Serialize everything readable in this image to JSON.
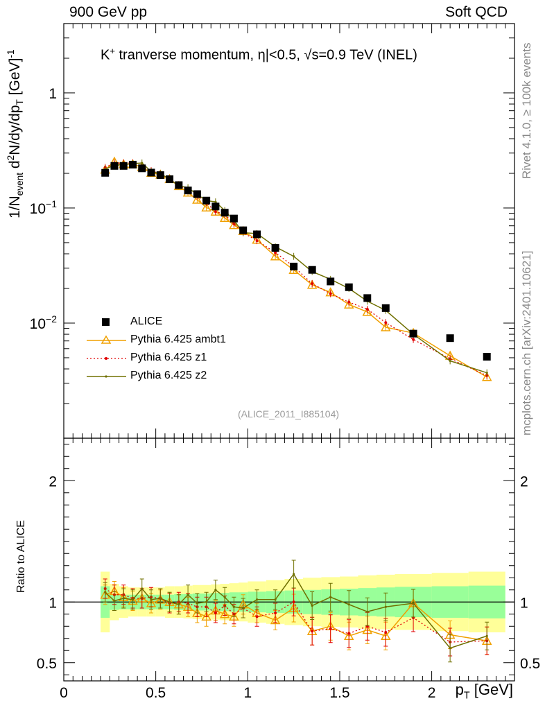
{
  "header": {
    "left": "900 GeV pp",
    "right": "Soft QCD"
  },
  "side": {
    "rivet": "Rivet 4.1.0, ≥ 100k events",
    "url": "mcplots.cern.ch [arXiv:2401.10621]"
  },
  "reference": "(ALICE_2011_I885104)",
  "colors": {
    "data": "#000000",
    "ambt1": "#f0a000",
    "z1": "#e00000",
    "z2": "#707000",
    "band_inner": "#99ff99",
    "band_outer": "#ffff99"
  },
  "chart_data": [
    {
      "type": "scatter",
      "title": "K⁺ tranverse momentum, |η|<0.5, √s=0.9 TeV (INEL)",
      "title_parts": {
        "k": "K",
        "kplus": "+",
        "text1": " tranverse momentum, ",
        "eta": "η",
        "text2": "|<0.5, ",
        "sqrt": "√",
        "text3": "s=0.9 TeV (INEL)"
      },
      "xlabel": "p_T [GeV]",
      "xlabel_parts": {
        "p": "p",
        "sub": "T",
        "unit": " [GeV]"
      },
      "ylabel": "1/N_event d²N/dy/dp_T [GeV]⁻¹",
      "ylabel_parts": {
        "a": "1/N",
        "sub1": "event",
        "b": " d",
        "sup1": "2",
        "c": "N/dy/dp",
        "sub2": "T",
        "d": " [GeV]",
        "sup2": "-1"
      },
      "xlim": [
        0,
        2.45
      ],
      "ylim_log": [
        0.001,
        4
      ],
      "yscale": "log",
      "ytick_labels": [
        "1",
        "10^-1",
        "10^-2"
      ],
      "ytick_parts": [
        {
          "base": "1",
          "exp": ""
        },
        {
          "base": "10",
          "exp": "−1"
        },
        {
          "base": "10",
          "exp": "−2"
        }
      ],
      "legend_position": "lower-left",
      "series": [
        {
          "name": "ALICE",
          "x": [
            0.225,
            0.275,
            0.325,
            0.375,
            0.425,
            0.475,
            0.525,
            0.575,
            0.625,
            0.675,
            0.725,
            0.775,
            0.825,
            0.875,
            0.925,
            0.975,
            1.05,
            1.15,
            1.25,
            1.35,
            1.45,
            1.55,
            1.65,
            1.75,
            1.9,
            2.1,
            2.3
          ],
          "y": [
            0.202,
            0.232,
            0.232,
            0.238,
            0.221,
            0.203,
            0.193,
            0.178,
            0.158,
            0.142,
            0.132,
            0.116,
            0.103,
            0.091,
            0.081,
            0.064,
            0.059,
            0.045,
            0.031,
            0.029,
            0.023,
            0.0205,
            0.0165,
            0.0135,
            0.0081,
            0.0074,
            0.0051
          ]
        },
        {
          "name": "Pythia 6.425 ambt1",
          "x": [
            0.225,
            0.275,
            0.325,
            0.375,
            0.425,
            0.475,
            0.525,
            0.575,
            0.625,
            0.675,
            0.725,
            0.775,
            0.825,
            0.875,
            0.925,
            0.975,
            1.05,
            1.15,
            1.25,
            1.35,
            1.45,
            1.55,
            1.65,
            1.75,
            1.9,
            2.1,
            2.3
          ],
          "y": [
            0.215,
            0.252,
            0.24,
            0.24,
            0.227,
            0.202,
            0.195,
            0.178,
            0.155,
            0.136,
            0.118,
            0.101,
            0.093,
            0.082,
            0.071,
            0.063,
            0.053,
            0.038,
            0.029,
            0.0215,
            0.0185,
            0.0145,
            0.0125,
            0.0092,
            0.0082,
            0.0052,
            0.0034
          ]
        },
        {
          "name": "Pythia 6.425 z1",
          "x": [
            0.225,
            0.275,
            0.325,
            0.375,
            0.425,
            0.475,
            0.525,
            0.575,
            0.625,
            0.675,
            0.725,
            0.775,
            0.825,
            0.875,
            0.925,
            0.975,
            1.05,
            1.15,
            1.25,
            1.35,
            1.45,
            1.55,
            1.65,
            1.75,
            1.9,
            2.1,
            2.3
          ],
          "y": [
            0.225,
            0.245,
            0.246,
            0.246,
            0.228,
            0.211,
            0.198,
            0.177,
            0.158,
            0.141,
            0.127,
            0.111,
            0.093,
            0.088,
            0.073,
            0.061,
            0.052,
            0.041,
            0.031,
            0.022,
            0.018,
            0.0152,
            0.0132,
            0.0101,
            0.0072,
            0.0049,
            0.0035
          ]
        },
        {
          "name": "Pythia 6.425 z2",
          "x": [
            0.225,
            0.275,
            0.325,
            0.375,
            0.425,
            0.475,
            0.525,
            0.575,
            0.625,
            0.675,
            0.725,
            0.775,
            0.825,
            0.875,
            0.925,
            0.975,
            1.05,
            1.15,
            1.25,
            1.35,
            1.45,
            1.55,
            1.65,
            1.75,
            1.9,
            2.1,
            2.3
          ],
          "y": [
            0.218,
            0.235,
            0.239,
            0.243,
            0.246,
            0.207,
            0.199,
            0.178,
            0.156,
            0.15,
            0.131,
            0.116,
            0.113,
            0.095,
            0.078,
            0.061,
            0.06,
            0.046,
            0.038,
            0.028,
            0.024,
            0.02,
            0.0155,
            0.0129,
            0.008,
            0.0047,
            0.0037
          ]
        }
      ]
    },
    {
      "type": "line",
      "ylabel": "Ratio to ALICE",
      "xlabel": "p_T [GeV]",
      "xlim": [
        0,
        2.45
      ],
      "ylim": [
        0.35,
        2.35
      ],
      "ytick_labels": [
        "0.5",
        "1",
        "2"
      ],
      "xtick_labels": [
        "0",
        "0.5",
        "1",
        "1.5",
        "2"
      ],
      "band": {
        "x_edges": [
          0.2,
          0.25,
          0.3,
          0.35,
          0.4,
          0.45,
          0.5,
          0.55,
          0.6,
          0.65,
          0.7,
          0.75,
          0.8,
          0.85,
          0.9,
          0.95,
          1.0,
          1.1,
          1.2,
          1.3,
          1.4,
          1.5,
          1.6,
          1.7,
          1.8,
          2.0,
          2.2,
          2.4
        ],
        "inner_half_width": [
          0.13,
          0.065,
          0.06,
          0.06,
          0.06,
          0.06,
          0.06,
          0.06,
          0.065,
          0.065,
          0.07,
          0.07,
          0.075,
          0.075,
          0.08,
          0.08,
          0.085,
          0.09,
          0.095,
          0.1,
          0.105,
          0.11,
          0.115,
          0.12,
          0.125,
          0.13,
          0.135
        ],
        "outer_half_width": [
          0.25,
          0.15,
          0.13,
          0.12,
          0.12,
          0.12,
          0.12,
          0.13,
          0.13,
          0.135,
          0.14,
          0.14,
          0.145,
          0.15,
          0.155,
          0.16,
          0.17,
          0.18,
          0.19,
          0.2,
          0.205,
          0.21,
          0.22,
          0.225,
          0.23,
          0.24,
          0.25
        ]
      },
      "series": [
        {
          "name": "Pythia 6.425 ambt1",
          "x": [
            0.225,
            0.275,
            0.325,
            0.375,
            0.425,
            0.475,
            0.525,
            0.575,
            0.625,
            0.675,
            0.725,
            0.775,
            0.825,
            0.875,
            0.925,
            0.975,
            1.05,
            1.15,
            1.25,
            1.35,
            1.45,
            1.55,
            1.65,
            1.75,
            1.9,
            2.1,
            2.3
          ],
          "y": [
            1.06,
            1.09,
            1.04,
            1.01,
            1.03,
            0.99,
            1.02,
            1.0,
            0.98,
            0.96,
            0.91,
            0.88,
            0.93,
            0.9,
            0.88,
            0.98,
            0.91,
            0.85,
            0.95,
            0.76,
            0.8,
            0.72,
            0.77,
            0.72,
            0.99,
            0.73,
            0.68
          ]
        },
        {
          "name": "Pythia 6.425 z1",
          "x": [
            0.225,
            0.275,
            0.325,
            0.375,
            0.425,
            0.475,
            0.525,
            0.575,
            0.625,
            0.675,
            0.725,
            0.775,
            0.825,
            0.875,
            0.925,
            0.975,
            1.05,
            1.15,
            1.25,
            1.35,
            1.45,
            1.55,
            1.65,
            1.75,
            1.9,
            2.1,
            2.3
          ],
          "y": [
            1.11,
            1.06,
            1.06,
            1.03,
            1.03,
            1.04,
            1.03,
            0.99,
            1.0,
            0.99,
            0.96,
            0.96,
            0.91,
            0.97,
            0.9,
            0.95,
            0.88,
            0.91,
            1.0,
            0.76,
            0.78,
            0.74,
            0.8,
            0.75,
            0.87,
            0.67,
            0.68
          ]
        },
        {
          "name": "Pythia 6.425 z2",
          "x": [
            0.225,
            0.275,
            0.325,
            0.375,
            0.425,
            0.475,
            0.525,
            0.575,
            0.625,
            0.675,
            0.725,
            0.775,
            0.825,
            0.875,
            0.925,
            0.975,
            1.05,
            1.15,
            1.25,
            1.35,
            1.45,
            1.55,
            1.65,
            1.75,
            1.9,
            2.1,
            2.3
          ],
          "y": [
            1.08,
            1.01,
            1.03,
            1.02,
            1.11,
            1.02,
            1.03,
            1.0,
            0.98,
            1.06,
            0.99,
            1.0,
            1.1,
            1.04,
            0.96,
            0.95,
            1.02,
            1.02,
            1.23,
            0.97,
            1.04,
            0.98,
            0.92,
            0.96,
            0.99,
            0.62,
            0.72
          ]
        }
      ]
    }
  ]
}
